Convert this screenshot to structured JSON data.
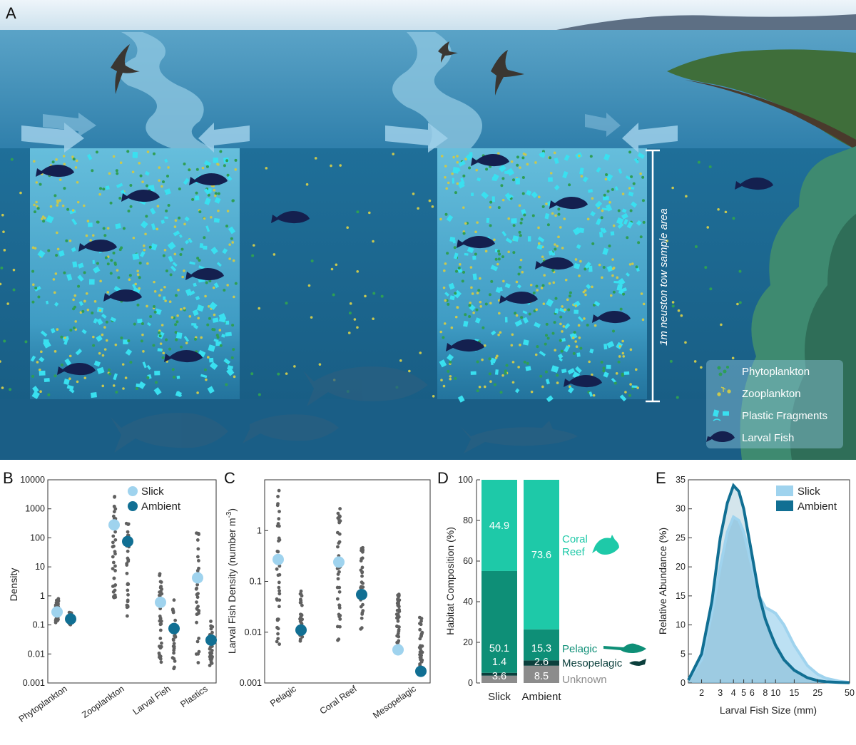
{
  "panel_labels": {
    "a": "A",
    "b": "B",
    "c": "C",
    "d": "D",
    "e": "E"
  },
  "scene": {
    "sample_area_label": "1m neuston tow sample area",
    "legend": [
      "Phytoplankton",
      "Zooplankton",
      "Plastic Fragments",
      "Larval Fish"
    ],
    "colors": {
      "sky": "#cfe3ef",
      "ocean_surface": "#4f9ac0",
      "water": "#1f6f99",
      "deep": "#1a5f86",
      "slick": "#5fb7d6",
      "fish": "#14204f",
      "plastic": "#39e0f0",
      "phyto": "#2e9e55",
      "zoo": "#c8c850",
      "island": "#3f6e3a",
      "coral": "#3e8a70"
    }
  },
  "colors": {
    "slick": "#9fd3ee",
    "ambient": "#116f93",
    "raw": "#606060",
    "coral": "#1ec9a8",
    "pelagic": "#0e8f77",
    "meso": "#0b3f3c",
    "unknown": "#8c8c8c"
  },
  "chart_data": [
    {
      "panel": "B",
      "type": "scatter",
      "ylabel": "Density",
      "yscale": "log",
      "ylim": [
        0.001,
        10000
      ],
      "yticks": [
        "0.001",
        "0.01",
        "0.1",
        "1",
        "10",
        "100",
        "1000",
        "10000"
      ],
      "categories": [
        "Phytoplankton",
        "Zooplankton",
        "Larval Fish",
        "Plastics"
      ],
      "legend": [
        "Slick",
        "Ambient"
      ],
      "series": [
        {
          "name": "Slick",
          "values": [
            0.28,
            280,
            0.6,
            4.2
          ]
        },
        {
          "name": "Ambient",
          "values": [
            0.16,
            75,
            0.075,
            0.03
          ]
        }
      ],
      "raw_ranges": {
        "Slick": [
          [
            0.12,
            0.8
          ],
          [
            0.8,
            3000
          ],
          [
            0.005,
            10
          ],
          [
            0.003,
            160
          ]
        ],
        "Ambient": [
          [
            0.09,
            0.28
          ],
          [
            0.2,
            400
          ],
          [
            0.003,
            0.8
          ],
          [
            0.004,
            0.16
          ]
        ]
      }
    },
    {
      "panel": "C",
      "type": "scatter",
      "ylabel": "Larval Fish Density (number m",
      "ylabel_sup": "-3",
      "ylabel_end": ")",
      "yscale": "log",
      "ylim": [
        0.001,
        10
      ],
      "yticks": [
        "0.001",
        "0.01",
        "0.1",
        "1"
      ],
      "categories": [
        "Pelagic",
        "Coral Reef",
        "Mesopelagic"
      ],
      "series": [
        {
          "name": "Slick",
          "values": [
            0.27,
            0.24,
            0.0045
          ]
        },
        {
          "name": "Ambient",
          "values": [
            0.011,
            0.055,
            0.0017
          ]
        }
      ],
      "raw_ranges": {
        "Slick": [
          [
            0.0045,
            7
          ],
          [
            0.006,
            3
          ],
          [
            0.0045,
            0.06
          ]
        ],
        "Ambient": [
          [
            0.006,
            0.07
          ],
          [
            0.009,
            0.5
          ],
          [
            0.0015,
            0.02
          ]
        ]
      }
    },
    {
      "panel": "D",
      "type": "bar",
      "stacked": true,
      "ylabel": "Habitat Composition (%)",
      "ylim": [
        0,
        100
      ],
      "yticks": [
        "0",
        "20",
        "40",
        "60",
        "80",
        "100"
      ],
      "categories": [
        "Slick",
        "Ambient"
      ],
      "series": [
        {
          "name": "Unknown",
          "values": [
            3.6,
            8.5
          ],
          "labels": [
            "3.6",
            "8.5"
          ]
        },
        {
          "name": "Mesopelagic",
          "values": [
            1.4,
            2.6
          ],
          "labels": [
            "1.4",
            "2.6"
          ]
        },
        {
          "name": "Pelagic",
          "values": [
            50.1,
            15.3
          ],
          "labels": [
            "50.1",
            "15.3"
          ]
        },
        {
          "name": "Coral Reef",
          "values": [
            44.9,
            73.6
          ],
          "labels": [
            "44.9",
            "73.6"
          ]
        }
      ],
      "right_labels": {
        "coral_line1": "Coral",
        "coral_line2": "Reef",
        "pelagic": "Pelagic",
        "meso": "Mesopelagic",
        "unknown": "Unknown"
      }
    },
    {
      "panel": "E",
      "type": "area",
      "xlabel": "Larval Fish Size (mm)",
      "ylabel": "Relative Abundance (%)",
      "xscale": "log",
      "xlim": [
        1.5,
        50
      ],
      "ylim": [
        0,
        35
      ],
      "xticks": [
        "2",
        "3",
        "4",
        "5",
        "6",
        "8",
        "10",
        "15",
        "25",
        "50"
      ],
      "yticks": [
        "0",
        "5",
        "10",
        "15",
        "20",
        "25",
        "30",
        "35"
      ],
      "legend": [
        "Slick",
        "Ambient"
      ],
      "series": [
        {
          "name": "Slick",
          "x": [
            1.5,
            2,
            2.5,
            3,
            3.5,
            4,
            4.5,
            5,
            6,
            7,
            8,
            9,
            10,
            12,
            15,
            20,
            25,
            30,
            40,
            50
          ],
          "values": [
            0.5,
            4,
            12,
            20,
            26,
            28.6,
            28,
            26,
            20,
            15,
            13,
            12.5,
            12,
            10,
            6.5,
            3,
            1.5,
            0.8,
            0.3,
            0.1
          ]
        },
        {
          "name": "Ambient",
          "x": [
            1.5,
            2,
            2.5,
            3,
            3.5,
            4,
            4.5,
            5,
            6,
            7,
            8,
            9,
            10,
            12,
            15,
            20,
            25,
            30,
            40,
            50
          ],
          "values": [
            0.5,
            5,
            14,
            25,
            31,
            34,
            33,
            30,
            22,
            15,
            11,
            8.5,
            6.5,
            4,
            2.2,
            0.9,
            0.4,
            0.2,
            0.1,
            0.05
          ]
        }
      ]
    }
  ]
}
